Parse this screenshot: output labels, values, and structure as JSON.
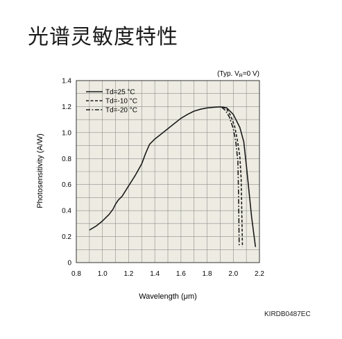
{
  "page": {
    "title": "光谱灵敏度特性",
    "doc_code": "KIRDB0487EC"
  },
  "chart_data": {
    "type": "line",
    "title": "",
    "condition": "(Typ. V",
    "condition_sub": "R",
    "condition_tail": "=0 V)",
    "xlabel": "Wavelength (μm)",
    "ylabel": "Photosensitivity (A/W)",
    "xlim": [
      0.8,
      2.2
    ],
    "ylim": [
      0,
      1.4
    ],
    "xticks": [
      "0.8",
      "1.0",
      "1.2",
      "1.4",
      "1.6",
      "1.8",
      "2.0",
      "2.2"
    ],
    "yticks": [
      "0",
      "0.2",
      "0.4",
      "0.6",
      "0.8",
      "1.0",
      "1.2",
      "1.4"
    ],
    "grid": true,
    "plot_background": "#eeece2",
    "legend_position": "top-left",
    "series": [
      {
        "name": "Td=25 °C",
        "style": "solid",
        "points": [
          [
            0.9,
            0.25
          ],
          [
            0.95,
            0.28
          ],
          [
            1.0,
            0.32
          ],
          [
            1.05,
            0.37
          ],
          [
            1.08,
            0.41
          ],
          [
            1.1,
            0.45
          ],
          [
            1.12,
            0.48
          ],
          [
            1.15,
            0.51
          ],
          [
            1.2,
            0.59
          ],
          [
            1.25,
            0.67
          ],
          [
            1.3,
            0.76
          ],
          [
            1.33,
            0.84
          ],
          [
            1.36,
            0.91
          ],
          [
            1.4,
            0.95
          ],
          [
            1.45,
            0.99
          ],
          [
            1.5,
            1.03
          ],
          [
            1.55,
            1.07
          ],
          [
            1.6,
            1.11
          ],
          [
            1.65,
            1.14
          ],
          [
            1.7,
            1.165
          ],
          [
            1.75,
            1.18
          ],
          [
            1.8,
            1.19
          ],
          [
            1.85,
            1.195
          ],
          [
            1.9,
            1.198
          ],
          [
            1.95,
            1.19
          ],
          [
            2.0,
            1.14
          ],
          [
            2.05,
            1.04
          ],
          [
            2.08,
            0.93
          ],
          [
            2.1,
            0.75
          ],
          [
            2.12,
            0.55
          ],
          [
            2.14,
            0.35
          ],
          [
            2.17,
            0.12
          ]
        ]
      },
      {
        "name": "Td=-10 °C",
        "style": "dashed",
        "points": [
          [
            1.92,
            1.198
          ],
          [
            1.95,
            1.18
          ],
          [
            1.98,
            1.13
          ],
          [
            2.01,
            1.05
          ],
          [
            2.03,
            0.95
          ],
          [
            2.05,
            0.82
          ],
          [
            2.06,
            0.65
          ],
          [
            2.065,
            0.4
          ],
          [
            2.07,
            0.12
          ]
        ]
      },
      {
        "name": "Td=-20 °C",
        "style": "dashdot",
        "points": [
          [
            1.91,
            1.196
          ],
          [
            1.94,
            1.17
          ],
          [
            1.97,
            1.12
          ],
          [
            2.0,
            1.03
          ],
          [
            2.02,
            0.92
          ],
          [
            2.035,
            0.78
          ],
          [
            2.04,
            0.55
          ],
          [
            2.043,
            0.3
          ],
          [
            2.045,
            0.12
          ]
        ]
      }
    ]
  }
}
